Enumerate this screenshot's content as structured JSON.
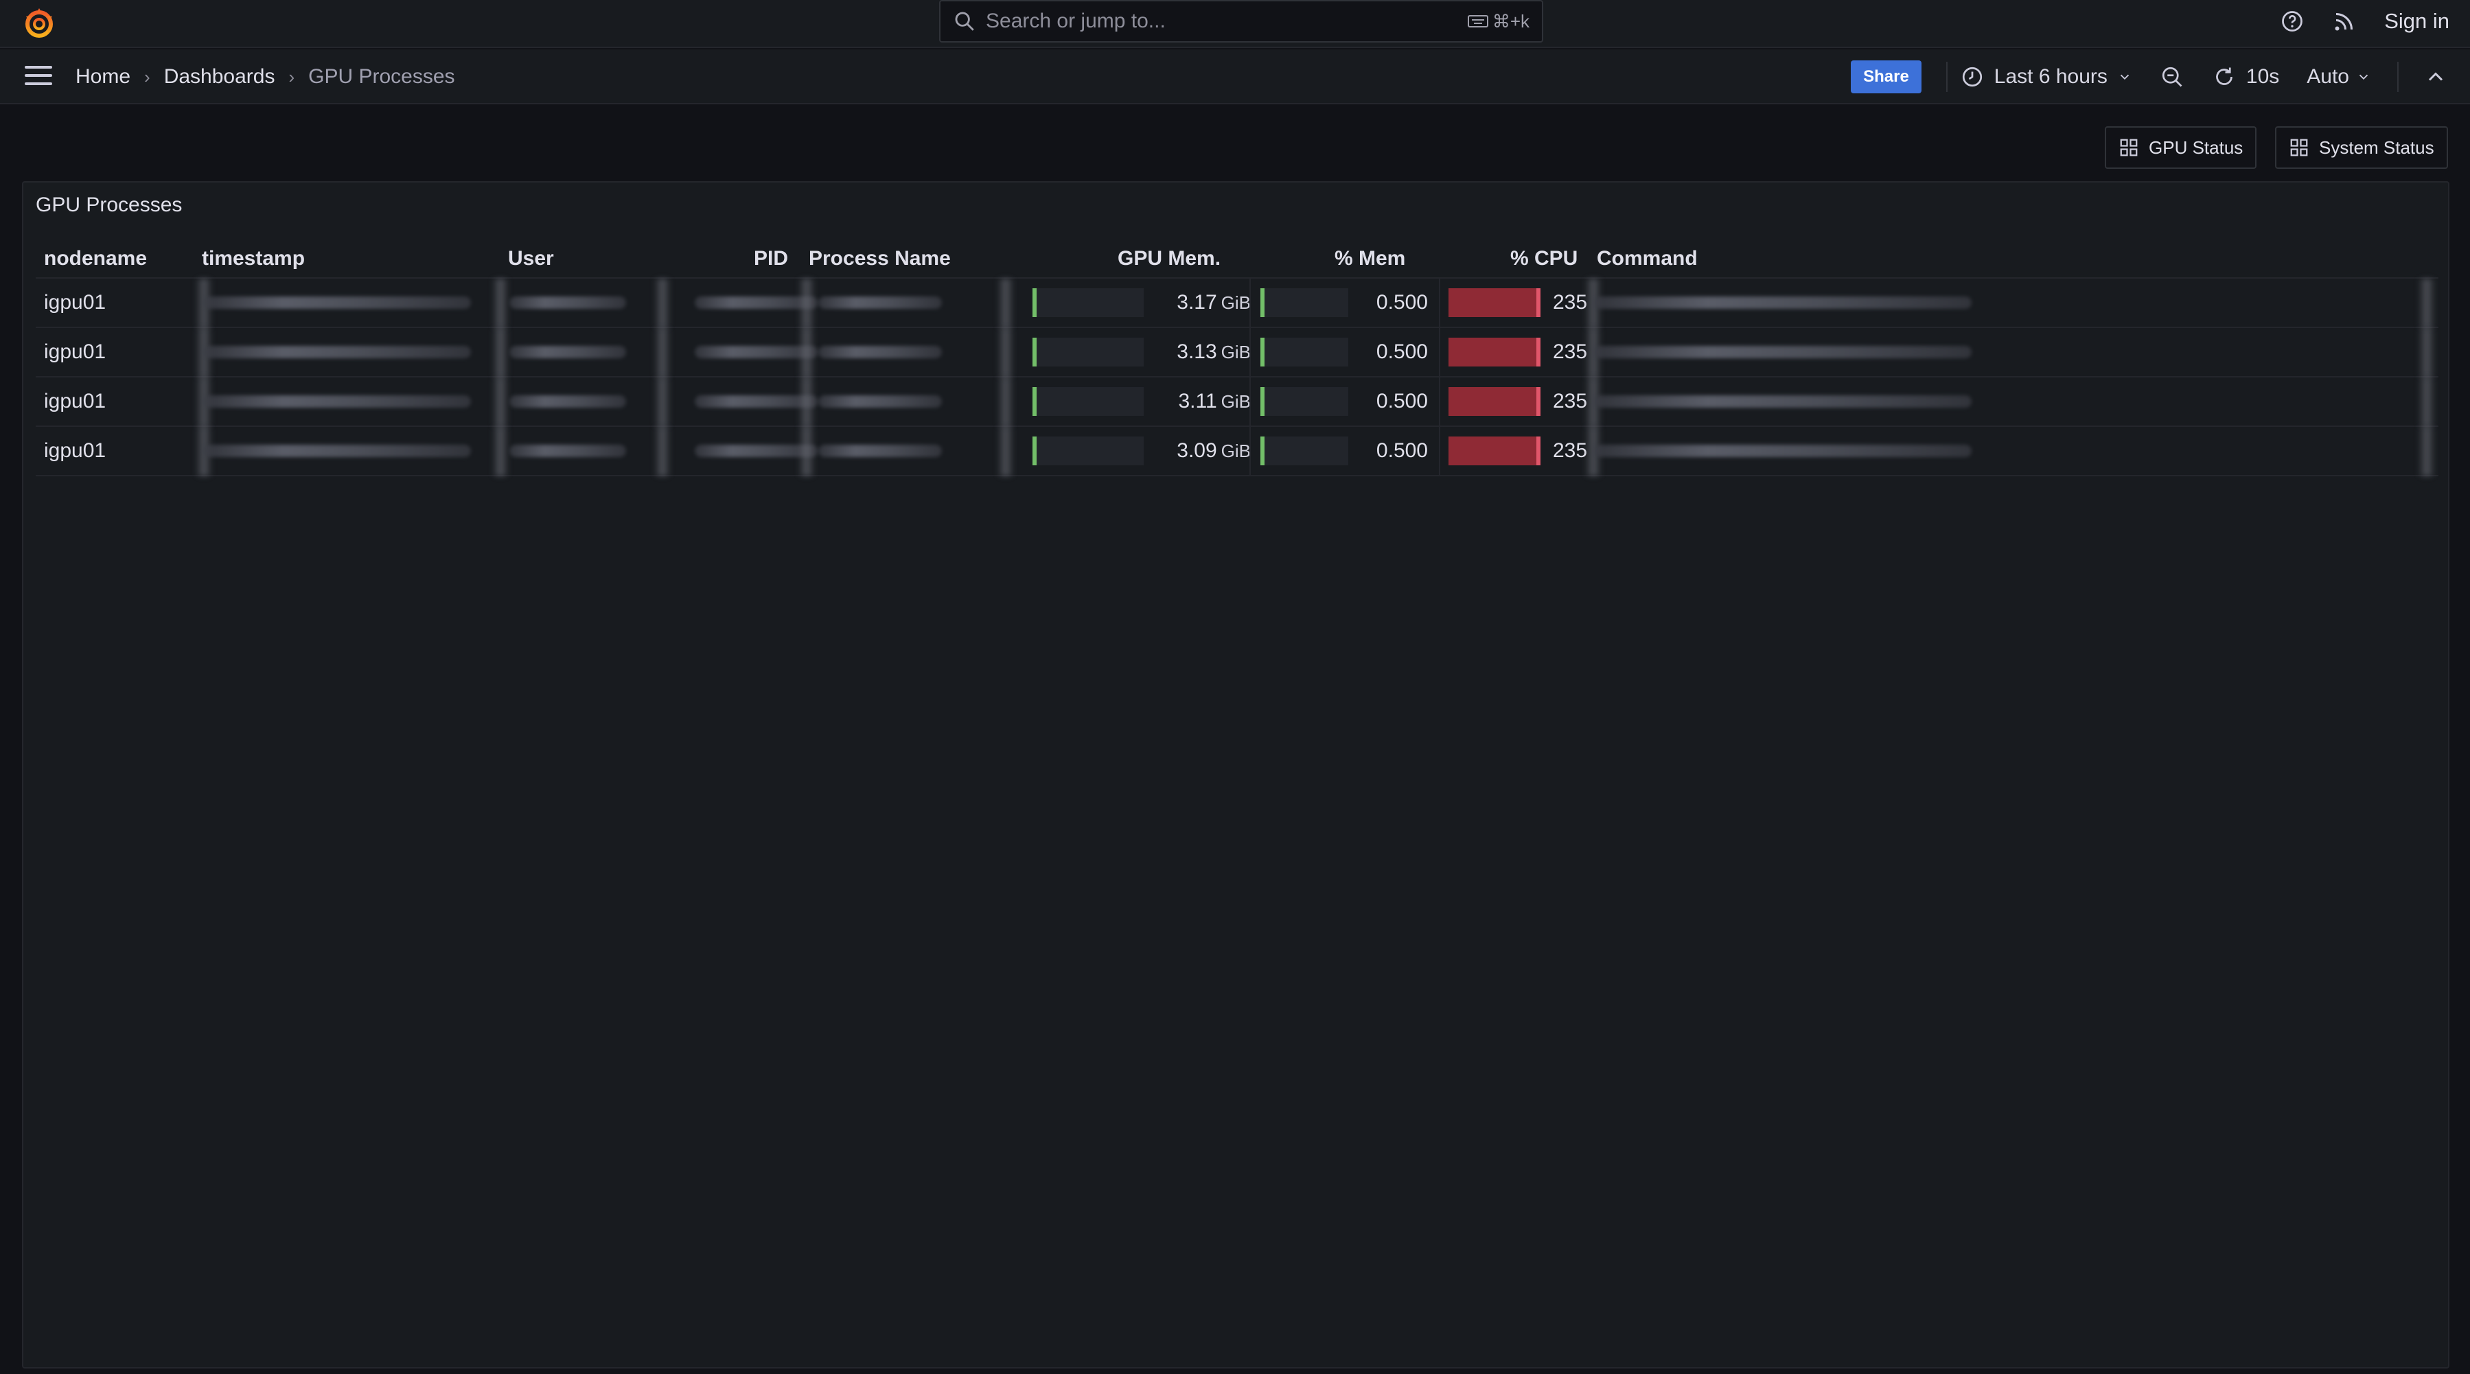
{
  "topbar": {
    "search_placeholder": "Search or jump to...",
    "search_shortcut": "⌘+k",
    "sign_in": "Sign in"
  },
  "nav": {
    "breadcrumbs": [
      "Home",
      "Dashboards",
      "GPU Processes"
    ],
    "share": "Share",
    "time_range": "Last 6 hours",
    "refresh_interval": "10s",
    "auto": "Auto"
  },
  "dashboard_links": [
    "GPU Status",
    "System Status"
  ],
  "panel": {
    "title": "GPU Processes",
    "columns": [
      "nodename",
      "timestamp",
      "User",
      "PID",
      "Process Name",
      "GPU Mem.",
      "% Mem",
      "% CPU",
      "Command"
    ],
    "rows": [
      {
        "nodename": "igpu01",
        "gpu_mem": "3.17",
        "gpu_mem_unit": "GiB",
        "mem_pct": "0.500",
        "cpu_pct": "235"
      },
      {
        "nodename": "igpu01",
        "gpu_mem": "3.13",
        "gpu_mem_unit": "GiB",
        "mem_pct": "0.500",
        "cpu_pct": "235"
      },
      {
        "nodename": "igpu01",
        "gpu_mem": "3.11",
        "gpu_mem_unit": "GiB",
        "mem_pct": "0.500",
        "cpu_pct": "235"
      },
      {
        "nodename": "igpu01",
        "gpu_mem": "3.09",
        "gpu_mem_unit": "GiB",
        "mem_pct": "0.500",
        "cpu_pct": "235"
      }
    ]
  },
  "colors": {
    "accent": "#3d71d9",
    "gauge_green": "#73bf69",
    "gauge_red": "#8f2a35",
    "background": "#111217",
    "panel": "#181b1f"
  }
}
